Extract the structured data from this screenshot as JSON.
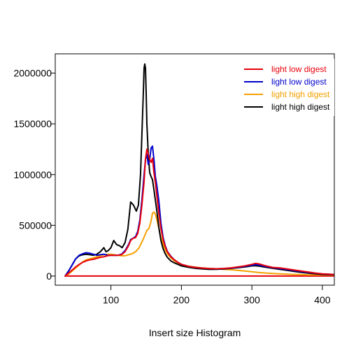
{
  "chart_data": {
    "type": "line",
    "title": "",
    "xlabel": "Insert size Histogram",
    "ylabel": "",
    "xlim": [
      21,
      417
    ],
    "ylim": [
      -90000,
      2190000
    ],
    "xticks": [
      100,
      200,
      300,
      400
    ],
    "xtick_labels": [
      "100",
      "200",
      "300",
      "400"
    ],
    "yticks": [
      0,
      500000,
      1000000,
      1500000,
      2000000
    ],
    "ytick_labels": [
      "0",
      "500000",
      "1000000",
      "1500000",
      "2000000"
    ],
    "grid": false,
    "legend_position": "top-right",
    "series": [
      {
        "name": "light low digest",
        "color": "#E8000B",
        "x": [
          35,
          40,
          45,
          50,
          55,
          60,
          65,
          70,
          75,
          80,
          85,
          90,
          95,
          100,
          105,
          110,
          115,
          120,
          125,
          128,
          131,
          135,
          138,
          141,
          144,
          147,
          149,
          151,
          153,
          155,
          157,
          159,
          161,
          163,
          165,
          168,
          171,
          174,
          177,
          180,
          185,
          190,
          195,
          200,
          210,
          220,
          230,
          240,
          250,
          260,
          270,
          280,
          290,
          300,
          305,
          310,
          320,
          330,
          340,
          350,
          360,
          370,
          380,
          390,
          400,
          410,
          417
        ],
        "y": [
          0,
          30000,
          60000,
          90000,
          115000,
          135000,
          150000,
          160000,
          165000,
          175000,
          185000,
          190000,
          200000,
          205000,
          205000,
          205000,
          210000,
          240000,
          300000,
          350000,
          370000,
          380000,
          420000,
          520000,
          700000,
          930000,
          1150000,
          1250000,
          1200000,
          1150000,
          1120000,
          1160000,
          1020000,
          920000,
          800000,
          620000,
          470000,
          360000,
          290000,
          240000,
          190000,
          160000,
          135000,
          115000,
          95000,
          85000,
          78000,
          74000,
          72000,
          75000,
          80000,
          90000,
          100000,
          115000,
          125000,
          120000,
          100000,
          85000,
          80000,
          70000,
          60000,
          50000,
          40000,
          30000,
          22000,
          18000,
          15000
        ]
      },
      {
        "name": "light low digest",
        "color": "#0000CC",
        "x": [
          35,
          40,
          45,
          50,
          55,
          60,
          65,
          70,
          75,
          80,
          85,
          90,
          95,
          100,
          105,
          110,
          115,
          120,
          125,
          128,
          131,
          135,
          138,
          141,
          144,
          147,
          149,
          151,
          153,
          155,
          157,
          159,
          161,
          163,
          165,
          168,
          171,
          174,
          177,
          180,
          185,
          190,
          195,
          200,
          210,
          220,
          230,
          240,
          250,
          260,
          270,
          280,
          290,
          300,
          305,
          310,
          320,
          330,
          340,
          350,
          360,
          370,
          380,
          390,
          400,
          410,
          417
        ],
        "y": [
          0,
          50000,
          110000,
          170000,
          205000,
          220000,
          230000,
          225000,
          215000,
          205000,
          210000,
          215000,
          205000,
          205000,
          205000,
          205000,
          215000,
          250000,
          310000,
          360000,
          370000,
          390000,
          440000,
          550000,
          750000,
          1000000,
          1150000,
          1200000,
          1100000,
          1150000,
          1260000,
          1280000,
          1150000,
          980000,
          900000,
          740000,
          520000,
          380000,
          300000,
          245000,
          195000,
          160000,
          135000,
          115000,
          95000,
          85000,
          78000,
          73000,
          72000,
          74000,
          78000,
          86000,
          96000,
          106000,
          112000,
          108000,
          93000,
          82000,
          74000,
          64000,
          54000,
          44000,
          36000,
          28000,
          20000,
          17000,
          15000
        ]
      },
      {
        "name": "light high digest",
        "color": "#F4A000",
        "x": [
          35,
          40,
          45,
          50,
          55,
          60,
          65,
          70,
          75,
          80,
          85,
          90,
          95,
          100,
          105,
          110,
          115,
          120,
          125,
          130,
          135,
          140,
          145,
          148,
          151,
          154,
          157,
          159,
          161,
          163,
          165,
          168,
          171,
          174,
          177,
          180,
          185,
          190,
          195,
          200,
          210,
          220,
          230,
          240,
          250,
          260,
          270,
          280,
          290,
          300,
          310,
          320,
          330,
          340,
          350,
          360,
          370,
          380,
          390,
          400,
          410,
          417
        ],
        "y": [
          0,
          20000,
          50000,
          80000,
          110000,
          140000,
          160000,
          170000,
          180000,
          190000,
          200000,
          210000,
          215000,
          215000,
          210000,
          205000,
          200000,
          200000,
          210000,
          220000,
          240000,
          280000,
          350000,
          400000,
          450000,
          470000,
          540000,
          620000,
          630000,
          610000,
          560000,
          470000,
          380000,
          310000,
          260000,
          220000,
          180000,
          150000,
          130000,
          115000,
          98000,
          88000,
          80000,
          75000,
          70000,
          66000,
          62000,
          57000,
          50000,
          42000,
          35000,
          30000,
          26000,
          22000,
          19000,
          16000,
          14000,
          12000,
          11000,
          10000,
          9000,
          8000
        ]
      },
      {
        "name": "light high digest",
        "color": "#000000",
        "x": [
          35,
          40,
          45,
          50,
          55,
          60,
          65,
          70,
          75,
          80,
          85,
          90,
          93,
          96,
          100,
          104,
          108,
          112,
          116,
          120,
          124,
          128,
          132,
          136,
          139,
          142,
          144,
          146,
          147,
          148,
          149,
          150,
          151,
          153,
          155,
          157,
          159,
          161,
          163,
          165,
          168,
          171,
          174,
          177,
          180,
          185,
          190,
          195,
          200,
          210,
          220,
          230,
          240,
          250,
          260,
          270,
          280,
          290,
          300,
          305,
          310,
          320,
          330,
          340,
          350,
          360,
          370,
          380,
          390,
          400,
          410,
          417
        ],
        "y": [
          0,
          50000,
          110000,
          170000,
          200000,
          210000,
          215000,
          210000,
          205000,
          215000,
          240000,
          280000,
          240000,
          250000,
          280000,
          350000,
          310000,
          300000,
          280000,
          330000,
          460000,
          730000,
          700000,
          640000,
          700000,
          1000000,
          1400000,
          1800000,
          2050000,
          2090000,
          2050000,
          1800000,
          1500000,
          1200000,
          1020000,
          980000,
          950000,
          850000,
          750000,
          650000,
          480000,
          350000,
          270000,
          220000,
          185000,
          150000,
          130000,
          115000,
          100000,
          86000,
          76000,
          70000,
          66000,
          67000,
          70000,
          75000,
          82000,
          90000,
          100000,
          102000,
          98000,
          86000,
          76000,
          66000,
          56000,
          46000,
          37000,
          29000,
          22000,
          16000,
          13000,
          11000
        ]
      },
      {
        "name": "",
        "color": "#E8000B",
        "x": [
          35,
          417
        ],
        "y": [
          0,
          0
        ]
      }
    ]
  }
}
